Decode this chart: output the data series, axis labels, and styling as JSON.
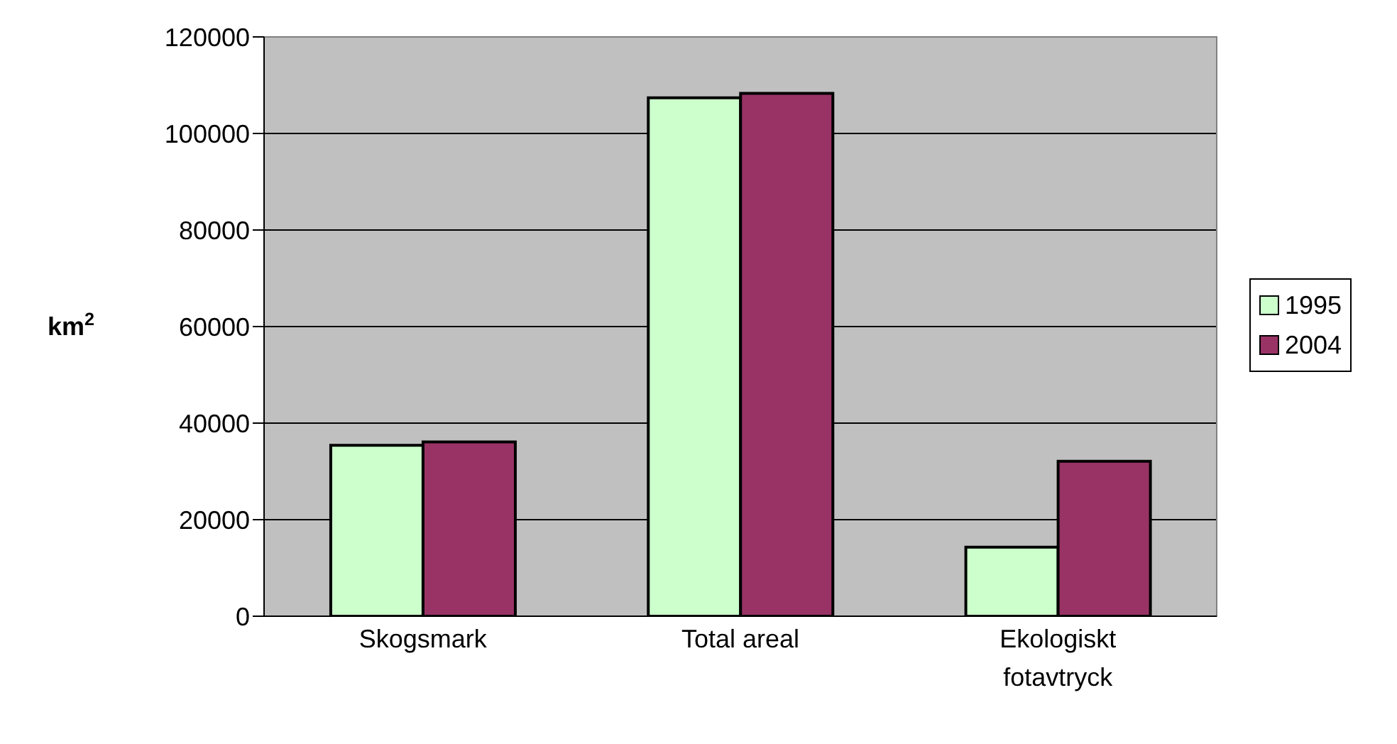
{
  "chart_data": {
    "type": "bar",
    "ylabel": "km$^{2}$",
    "categories": [
      "Skogsmark",
      "Total areal",
      "Ekologiskt fotavtryck"
    ],
    "series": [
      {
        "name": "1995",
        "color": "#ccffcc",
        "values": [
          35400,
          107400,
          14300
        ]
      },
      {
        "name": "2004",
        "color": "#993366",
        "values": [
          36100,
          108300,
          32100
        ]
      }
    ],
    "ylim": [
      0,
      120000
    ],
    "yticks": [
      0,
      20000,
      40000,
      60000,
      80000,
      100000,
      120000
    ],
    "grid": "y",
    "legend": "right"
  }
}
